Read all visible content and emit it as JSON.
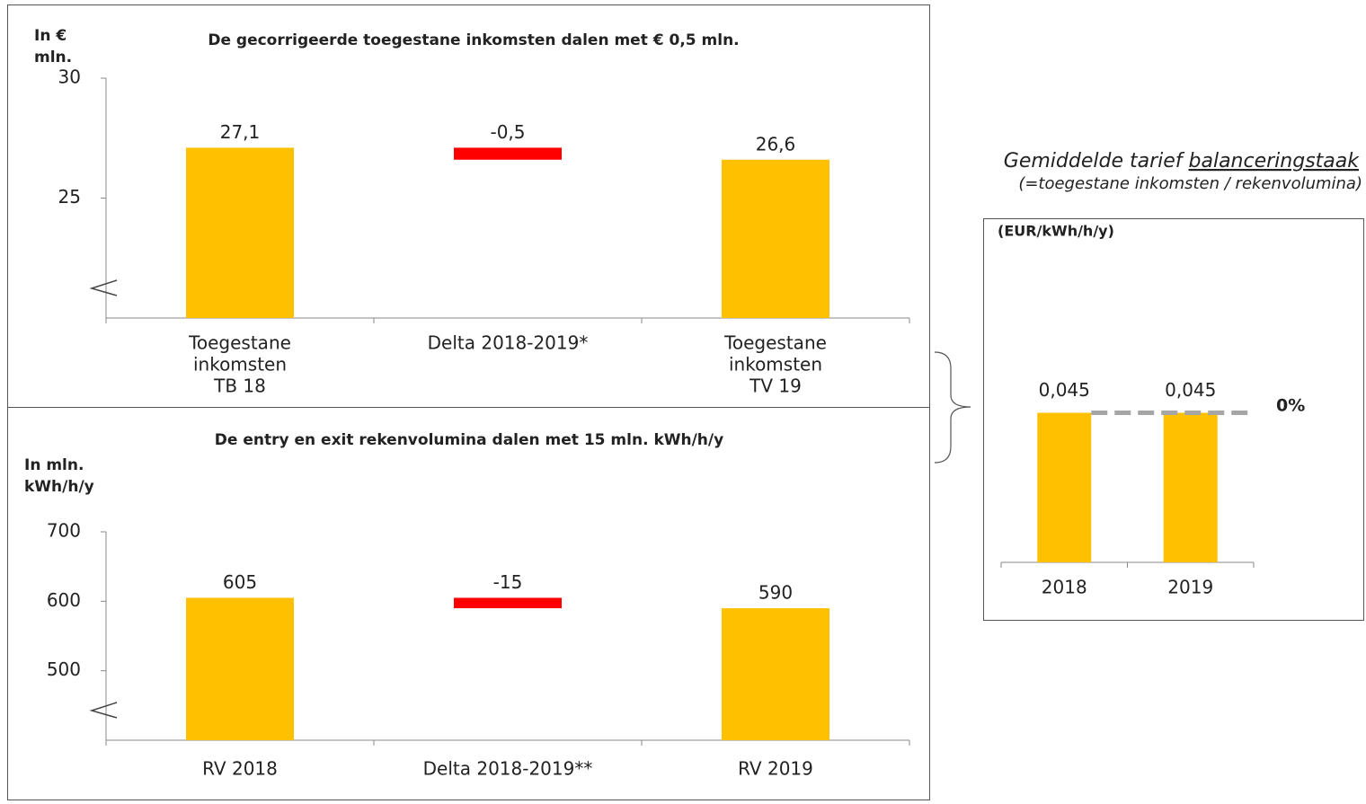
{
  "chart_data": [
    {
      "type": "waterfall",
      "title": "De gecorrigeerde toegestane inkomsten dalen met € 0,5 mln.",
      "y_label": [
        "In €",
        "mln."
      ],
      "categories": [
        [
          "Toegestane",
          "inkomsten",
          "TB 18"
        ],
        [
          "Delta 2018-2019*"
        ],
        [
          "Toegestane",
          "inkomsten",
          "TV 19"
        ]
      ],
      "values": [
        27.1,
        -0.5,
        26.6
      ],
      "value_labels": [
        "27,1",
        "-0,5",
        "26,6"
      ],
      "colors": [
        "#ffc000",
        "#ff0000",
        "#ffc000"
      ],
      "ylim": [
        20,
        30
      ],
      "yticks": [
        25,
        30
      ],
      "axis_break": true
    },
    {
      "type": "waterfall",
      "title": "De entry en exit rekenvolumina dalen met 15 mln. kWh/h/y",
      "y_label": [
        "In mln.",
        "kWh/h/y"
      ],
      "categories": [
        "RV 2018",
        "Delta 2018-2019**",
        "RV 2019"
      ],
      "values": [
        605,
        -15,
        590
      ],
      "colors": [
        "#ffc000",
        "#ff0000",
        "#ffc000"
      ],
      "ylim": [
        400,
        700
      ],
      "yticks": [
        500,
        600,
        700
      ],
      "axis_break": true
    },
    {
      "type": "bar",
      "title": [
        "Gemiddelde tarief ",
        "balanceringstaak"
      ],
      "subtitle": "(=toegestane inkomsten / rekenvolumina)",
      "y_label": "(EUR/kWh/h/y)",
      "categories": [
        "2018",
        "2019"
      ],
      "values": [
        0.045,
        0.045
      ],
      "value_labels": [
        "0,045",
        "0,045"
      ],
      "color": "#ffc000",
      "ylim": [
        0,
        0.06
      ],
      "annotation": "0%"
    }
  ]
}
